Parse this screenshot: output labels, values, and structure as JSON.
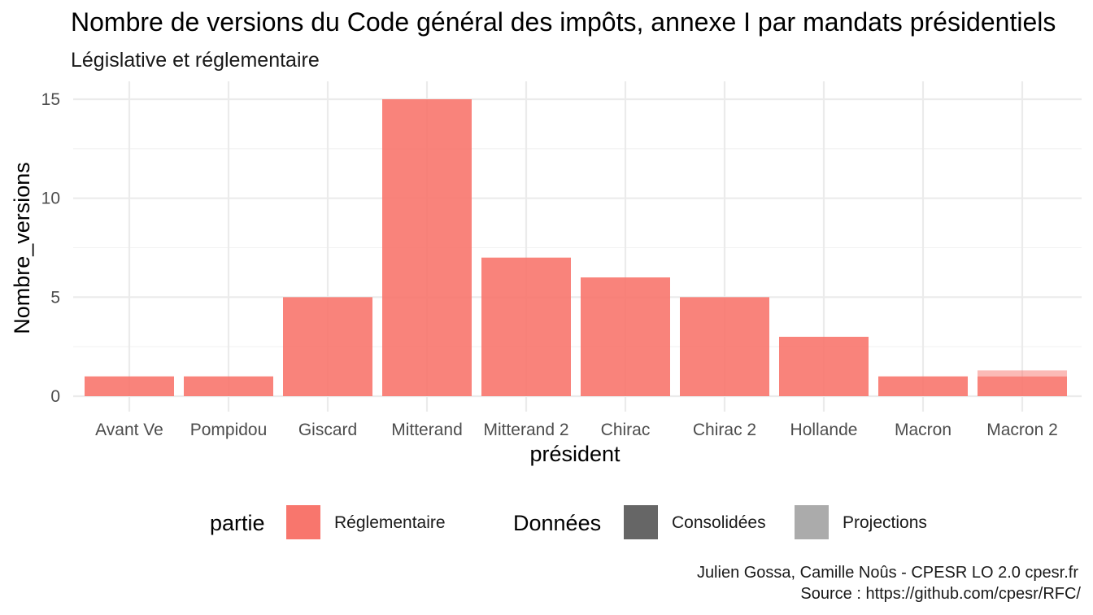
{
  "chart_data": {
    "type": "bar",
    "title": "Nombre de versions du Code général des impôts, annexe I par mandats présidentiels",
    "subtitle": "Législative et réglementaire",
    "xlabel": "président",
    "ylabel": "Nombre_versions",
    "ylim": [
      0,
      15
    ],
    "yticks": [
      0,
      5,
      10,
      15
    ],
    "grid": true,
    "categories": [
      "Avant Ve",
      "Pompidou",
      "Giscard",
      "Mitterand",
      "Mitterand 2",
      "Chirac",
      "Chirac 2",
      "Hollande",
      "Macron",
      "Macron 2"
    ],
    "series": [
      {
        "name": "Réglementaire",
        "data_type": "Consolidées",
        "color": "#F8766D",
        "values": [
          1,
          1,
          5,
          15,
          7,
          6,
          5,
          3,
          1,
          1
        ]
      },
      {
        "name": "Réglementaire",
        "data_type": "Projections",
        "color": "#F8766D",
        "values": [
          0,
          0,
          0,
          0,
          0,
          0,
          0,
          0,
          0,
          0.3
        ]
      }
    ],
    "legend_position": "bottom",
    "legend": {
      "partie": {
        "title": "partie",
        "items": [
          {
            "label": "Réglementaire",
            "color": "#F8766D"
          }
        ]
      },
      "donnees": {
        "title": "Données",
        "items": [
          {
            "label": "Consolidées",
            "color": "#666666"
          },
          {
            "label": "Projections",
            "color": "#ababab"
          }
        ]
      }
    }
  },
  "caption": {
    "line1": "Julien Gossa, Camille Noûs - CPESR LO 2.0 cpesr.fr",
    "line2": "Source : https://github.com/cpesr/RFC/"
  }
}
